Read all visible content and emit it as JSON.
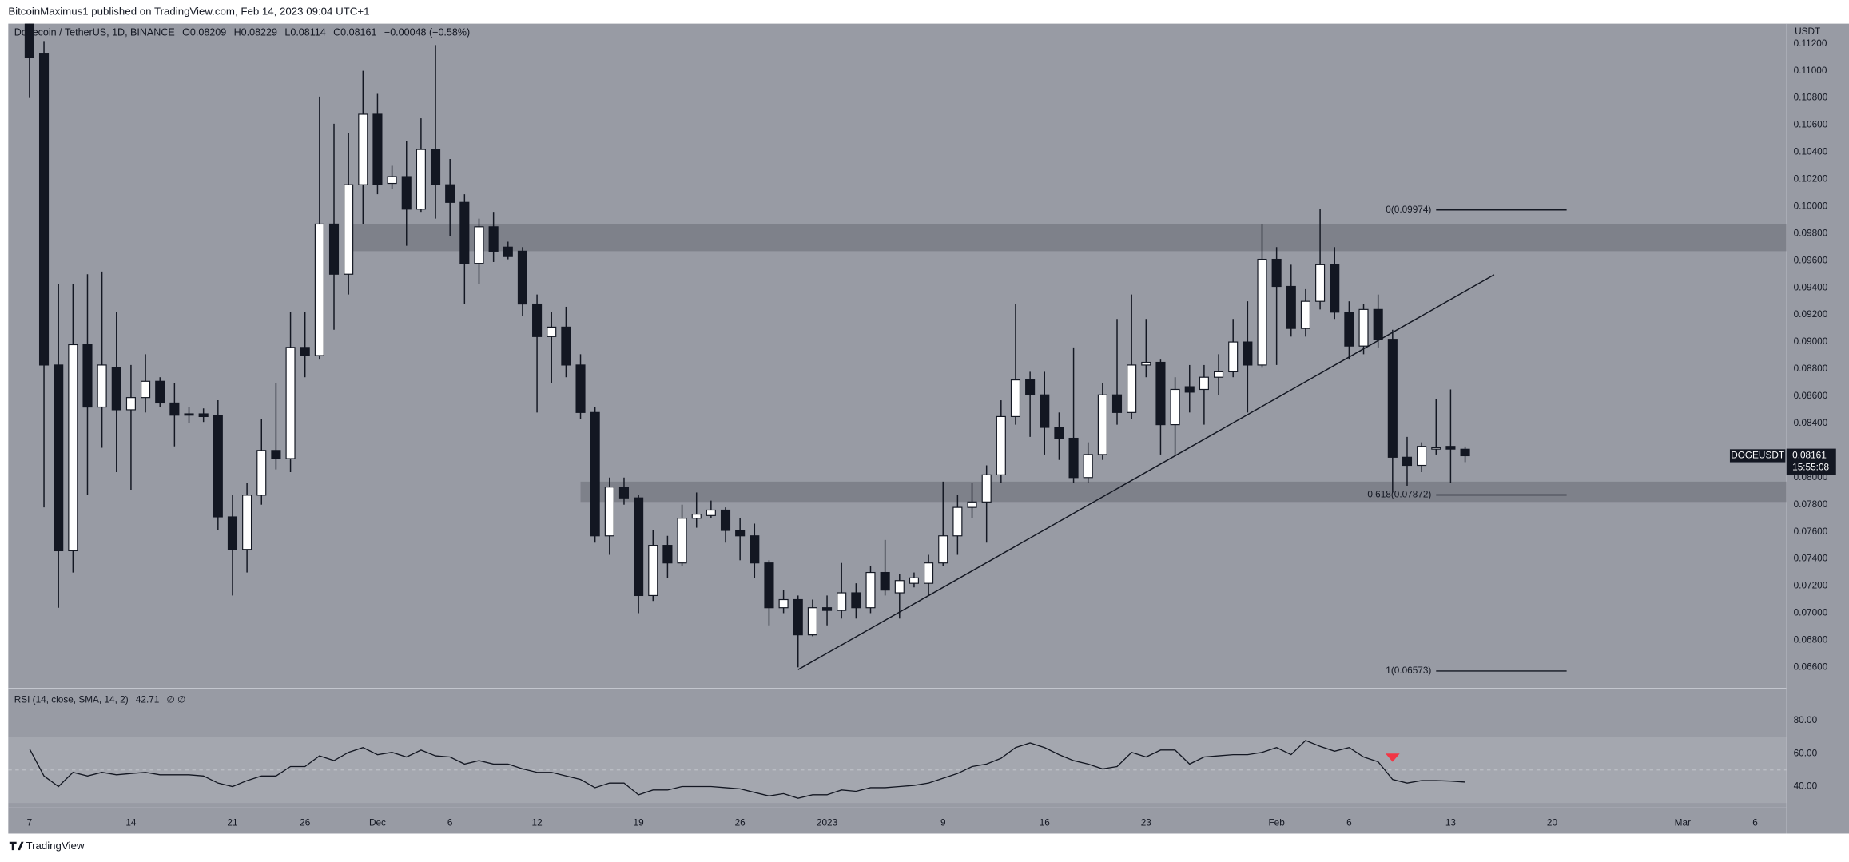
{
  "chart_data": {
    "type": "candlestick",
    "title": "BitcoinMaximus1 published on TradingView.com, Feb 14, 2023 09:04 UTC+1",
    "symbol": "Dogecoin / TetherUS, 1D, BINANCE",
    "ohlc_keys": [
      "O",
      "H",
      "L",
      "C"
    ],
    "change": "−0.00048 (−0.58%)",
    "unit": "USDT",
    "footer": "TradingView",
    "up_color": "#ffffff",
    "down_color": "#131722",
    "x": [
      "2022-11-07",
      "2022-11-08",
      "2022-11-09",
      "2022-11-10",
      "2022-11-11",
      "2022-11-12",
      "2022-11-13",
      "2022-11-14",
      "2022-11-15",
      "2022-11-16",
      "2022-11-17",
      "2022-11-18",
      "2022-11-19",
      "2022-11-20",
      "2022-11-21",
      "2022-11-22",
      "2022-11-23",
      "2022-11-24",
      "2022-11-25",
      "2022-11-26",
      "2022-11-27",
      "2022-11-28",
      "2022-11-29",
      "2022-11-30",
      "2022-12-01",
      "2022-12-02",
      "2022-12-03",
      "2022-12-04",
      "2022-12-05",
      "2022-12-06",
      "2022-12-07",
      "2022-12-08",
      "2022-12-09",
      "2022-12-10",
      "2022-12-11",
      "2022-12-12",
      "2022-12-13",
      "2022-12-14",
      "2022-12-15",
      "2022-12-16",
      "2022-12-17",
      "2022-12-18",
      "2022-12-19",
      "2022-12-20",
      "2022-12-21",
      "2022-12-22",
      "2022-12-23",
      "2022-12-24",
      "2022-12-25",
      "2022-12-26",
      "2022-12-27",
      "2022-12-28",
      "2022-12-29",
      "2022-12-30",
      "2022-12-31",
      "2023-01-01",
      "2023-01-02",
      "2023-01-03",
      "2023-01-04",
      "2023-01-05",
      "2023-01-06",
      "2023-01-07",
      "2023-01-08",
      "2023-01-09",
      "2023-01-10",
      "2023-01-11",
      "2023-01-12",
      "2023-01-13",
      "2023-01-14",
      "2023-01-15",
      "2023-01-16",
      "2023-01-17",
      "2023-01-18",
      "2023-01-19",
      "2023-01-20",
      "2023-01-21",
      "2023-01-22",
      "2023-01-23",
      "2023-01-24",
      "2023-01-25",
      "2023-01-26",
      "2023-01-27",
      "2023-01-28",
      "2023-01-29",
      "2023-01-30",
      "2023-01-31",
      "2023-02-01",
      "2023-02-02",
      "2023-02-03",
      "2023-02-04",
      "2023-02-05",
      "2023-02-06",
      "2023-02-07",
      "2023-02-08",
      "2023-02-09",
      "2023-02-10",
      "2023-02-11",
      "2023-02-12",
      "2023-02-13",
      "2023-02-14"
    ],
    "open": [
      0.1135,
      0.1113,
      0.0883,
      0.0746,
      0.0898,
      0.0852,
      0.0881,
      0.085,
      0.0859,
      0.0871,
      0.0855,
      0.0847,
      0.0847,
      0.0846,
      0.0771,
      0.0747,
      0.0787,
      0.082,
      0.0814,
      0.0896,
      0.089,
      0.0987,
      0.095,
      0.1016,
      0.1068,
      0.1017,
      0.1022,
      0.0998,
      0.1042,
      0.1016,
      0.1003,
      0.0958,
      0.0985,
      0.097,
      0.0967,
      0.0928,
      0.0904,
      0.0911,
      0.0883,
      0.0848,
      0.0757,
      0.0793,
      0.0785,
      0.0713,
      0.075,
      0.0737,
      0.077,
      0.0772,
      0.0776,
      0.0761,
      0.0757,
      0.0737,
      0.0704,
      0.071,
      0.0684,
      0.0704,
      0.0702,
      0.0715,
      0.0704,
      0.073,
      0.0715,
      0.0722,
      0.0722,
      0.0737,
      0.0757,
      0.0778,
      0.0782,
      0.0802,
      0.0845,
      0.0872,
      0.0861,
      0.0837,
      0.0829,
      0.08,
      0.0817,
      0.0861,
      0.0848,
      0.0883,
      0.0885,
      0.0839,
      0.0867,
      0.0865,
      0.0874,
      0.0878,
      0.09,
      0.0883,
      0.0961,
      0.0941,
      0.091,
      0.093,
      0.0957,
      0.0922,
      0.0897,
      0.0924,
      0.0902,
      0.0815,
      0.0809,
      0.0821,
      0.0823,
      0.08209
    ],
    "high": [
      0.115,
      0.1122,
      0.0943,
      0.0943,
      0.095,
      0.0952,
      0.0922,
      0.0883,
      0.0891,
      0.0874,
      0.087,
      0.0852,
      0.0851,
      0.0857,
      0.0787,
      0.0796,
      0.0843,
      0.087,
      0.0922,
      0.0922,
      0.1081,
      0.1061,
      0.1054,
      0.11,
      0.1083,
      0.103,
      0.1048,
      0.1065,
      0.1119,
      0.1035,
      0.1009,
      0.0991,
      0.0996,
      0.0974,
      0.097,
      0.0935,
      0.0922,
      0.0926,
      0.0891,
      0.0852,
      0.08,
      0.08,
      0.0787,
      0.0761,
      0.0757,
      0.078,
      0.0789,
      0.0783,
      0.0778,
      0.077,
      0.0766,
      0.0739,
      0.0717,
      0.0713,
      0.071,
      0.0713,
      0.0737,
      0.0722,
      0.0735,
      0.0754,
      0.0729,
      0.073,
      0.0743,
      0.0797,
      0.0787,
      0.0796,
      0.0809,
      0.0857,
      0.0928,
      0.0878,
      0.0878,
      0.0848,
      0.0896,
      0.0826,
      0.087,
      0.0917,
      0.0935,
      0.0917,
      0.0887,
      0.0874,
      0.0883,
      0.0883,
      0.0891,
      0.0917,
      0.093,
      0.0987,
      0.097,
      0.0957,
      0.0939,
      0.0998,
      0.097,
      0.093,
      0.0928,
      0.0935,
      0.0909,
      0.083,
      0.0826,
      0.0858,
      0.0865,
      0.08229
    ],
    "low": [
      0.108,
      0.0778,
      0.0704,
      0.073,
      0.0787,
      0.0822,
      0.0804,
      0.0791,
      0.0848,
      0.0852,
      0.0823,
      0.084,
      0.0841,
      0.0761,
      0.0713,
      0.073,
      0.078,
      0.0806,
      0.0804,
      0.0874,
      0.0887,
      0.0909,
      0.0935,
      0.0987,
      0.1009,
      0.1013,
      0.0971,
      0.0996,
      0.0991,
      0.0978,
      0.0928,
      0.0943,
      0.0959,
      0.0961,
      0.0919,
      0.0848,
      0.087,
      0.0874,
      0.0843,
      0.0752,
      0.0743,
      0.078,
      0.07,
      0.0709,
      0.0726,
      0.0735,
      0.0763,
      0.077,
      0.0752,
      0.0739,
      0.0726,
      0.0691,
      0.07,
      0.066,
      0.0683,
      0.0691,
      0.0696,
      0.0696,
      0.07,
      0.0713,
      0.0696,
      0.0719,
      0.0713,
      0.0735,
      0.0743,
      0.077,
      0.0752,
      0.0796,
      0.0839,
      0.083,
      0.0817,
      0.0813,
      0.0796,
      0.0796,
      0.0813,
      0.0839,
      0.0843,
      0.0874,
      0.0817,
      0.0817,
      0.0848,
      0.0839,
      0.0861,
      0.0874,
      0.0848,
      0.0881,
      0.0883,
      0.0904,
      0.0904,
      0.0924,
      0.0917,
      0.0887,
      0.0891,
      0.0896,
      0.0789,
      0.0794,
      0.0804,
      0.0817,
      0.0796,
      0.08114
    ],
    "close": [
      0.111,
      0.0883,
      0.0746,
      0.0898,
      0.0852,
      0.0883,
      0.085,
      0.0859,
      0.0871,
      0.0855,
      0.0846,
      0.0846,
      0.0845,
      0.0771,
      0.0747,
      0.0787,
      0.082,
      0.0814,
      0.0896,
      0.089,
      0.0987,
      0.095,
      0.1016,
      0.1068,
      0.1016,
      0.1022,
      0.0998,
      0.1042,
      0.1016,
      0.1003,
      0.0958,
      0.0985,
      0.0967,
      0.0963,
      0.0928,
      0.0904,
      0.0911,
      0.0883,
      0.0848,
      0.0757,
      0.0793,
      0.0785,
      0.0713,
      0.075,
      0.0737,
      0.077,
      0.0773,
      0.0776,
      0.0761,
      0.0757,
      0.0737,
      0.0704,
      0.071,
      0.0684,
      0.0704,
      0.0702,
      0.0715,
      0.0704,
      0.073,
      0.0717,
      0.0724,
      0.0726,
      0.0737,
      0.0757,
      0.0778,
      0.0782,
      0.0802,
      0.0845,
      0.0872,
      0.0861,
      0.0837,
      0.0829,
      0.08,
      0.0817,
      0.0861,
      0.0848,
      0.0883,
      0.0885,
      0.0839,
      0.0865,
      0.0863,
      0.0874,
      0.0878,
      0.09,
      0.0883,
      0.0961,
      0.0941,
      0.091,
      0.093,
      0.0957,
      0.0922,
      0.0897,
      0.0924,
      0.0902,
      0.0815,
      0.0809,
      0.0823,
      0.0822,
      0.0821,
      0.08161
    ],
    "xlim": [
      "2022-11-06",
      "2023-03-08"
    ],
    "xticks": [
      {
        "value": "2022-11-07",
        "label": "7"
      },
      {
        "value": "2022-11-14",
        "label": "14"
      },
      {
        "value": "2022-11-21",
        "label": "21"
      },
      {
        "value": "2022-11-26",
        "label": "26"
      },
      {
        "value": "2022-12-01",
        "label": "Dec"
      },
      {
        "value": "2022-12-06",
        "label": "6"
      },
      {
        "value": "2022-12-12",
        "label": "12"
      },
      {
        "value": "2022-12-19",
        "label": "19"
      },
      {
        "value": "2022-12-26",
        "label": "26"
      },
      {
        "value": "2023-01-01",
        "label": "2023"
      },
      {
        "value": "2023-01-09",
        "label": "9"
      },
      {
        "value": "2023-01-16",
        "label": "16"
      },
      {
        "value": "2023-01-23",
        "label": "23"
      },
      {
        "value": "2023-02-01",
        "label": "Feb"
      },
      {
        "value": "2023-02-06",
        "label": "6"
      },
      {
        "value": "2023-02-13",
        "label": "13"
      },
      {
        "value": "2023-02-20",
        "label": "20"
      },
      {
        "value": "2023-03-01",
        "label": "Mar"
      },
      {
        "value": "2023-03-06",
        "label": "6"
      }
    ],
    "ylim": [
      0.06452,
      0.11348
    ],
    "yticks": [
      {
        "value": 0.112,
        "label": "0.11200"
      },
      {
        "value": 0.11,
        "label": "0.11000"
      },
      {
        "value": 0.108,
        "label": "0.10800"
      },
      {
        "value": 0.106,
        "label": "0.10600"
      },
      {
        "value": 0.104,
        "label": "0.10400"
      },
      {
        "value": 0.102,
        "label": "0.10200"
      },
      {
        "value": 0.1,
        "label": "0.10000"
      },
      {
        "value": 0.098,
        "label": "0.09800"
      },
      {
        "value": 0.096,
        "label": "0.09600"
      },
      {
        "value": 0.094,
        "label": "0.09400"
      },
      {
        "value": 0.092,
        "label": "0.09200"
      },
      {
        "value": 0.09,
        "label": "0.09000"
      },
      {
        "value": 0.088,
        "label": "0.08800"
      },
      {
        "value": 0.086,
        "label": "0.08600"
      },
      {
        "value": 0.084,
        "label": "0.08400"
      },
      {
        "value": 0.08,
        "label": "0.08000"
      },
      {
        "value": 0.078,
        "label": "0.07800"
      },
      {
        "value": 0.076,
        "label": "0.07600"
      },
      {
        "value": 0.074,
        "label": "0.07400"
      },
      {
        "value": 0.072,
        "label": "0.07200"
      },
      {
        "value": 0.07,
        "label": "0.07000"
      },
      {
        "value": 0.068,
        "label": "0.06800"
      },
      {
        "value": 0.066,
        "label": "0.06600"
      }
    ],
    "zones": [
      {
        "start": "2022-11-29",
        "low": 0.0967,
        "high": 0.0987
      },
      {
        "start": "2022-12-15",
        "low": 0.0782,
        "high": 0.0797
      }
    ],
    "fib_levels": [
      {
        "label": "0(0.09974)",
        "value": 0.09974
      },
      {
        "label": "0.618(0.07872)",
        "value": 0.07872
      },
      {
        "label": "1(0.06573)",
        "value": 0.06573
      }
    ],
    "fib_range": [
      "2023-02-12",
      "2023-02-21"
    ],
    "trendline": {
      "x": [
        "2022-12-30",
        "2023-02-16"
      ],
      "values": [
        0.06583,
        0.09496
      ]
    },
    "price_tag": {
      "symbol": "DOGEUSDT",
      "countdown": "15:55:08"
    },
    "rsi": {
      "label": "RSI (14, close, SMA, 14, 2)",
      "extra": "∅ ∅",
      "values": [
        62.9,
        46.4,
        40.0,
        48.6,
        46.4,
        48.6,
        47.1,
        47.9,
        48.6,
        47.1,
        47.1,
        47.1,
        46.4,
        42.1,
        40.0,
        43.6,
        46.4,
        46.4,
        52.1,
        52.1,
        58.6,
        55.7,
        60.7,
        63.6,
        59.3,
        60.7,
        57.9,
        62.1,
        58.6,
        57.9,
        53.6,
        55.7,
        53.6,
        53.6,
        50.7,
        48.6,
        48.6,
        46.4,
        44.3,
        39.3,
        42.1,
        42.1,
        35.0,
        37.9,
        37.9,
        40.0,
        40.0,
        40.0,
        39.3,
        38.6,
        36.4,
        34.3,
        35.7,
        32.9,
        35.0,
        35.0,
        37.9,
        37.1,
        39.3,
        39.3,
        40.0,
        40.7,
        42.1,
        45.0,
        47.9,
        52.1,
        53.6,
        57.1,
        63.6,
        66.4,
        63.6,
        59.3,
        55.7,
        53.6,
        50.7,
        52.1,
        60.7,
        57.9,
        62.1,
        62.1,
        53.6,
        57.9,
        58.6,
        59.3,
        59.3,
        60.7,
        63.6,
        59.3,
        67.9,
        64.3,
        61.4,
        63.6,
        57.9,
        55.0,
        44.3,
        42.1,
        43.6,
        43.6,
        43.3,
        42.71
      ],
      "ylim": [
        28.6,
        98.6
      ],
      "yticks": [
        {
          "value": 80,
          "label": "80.00"
        },
        {
          "value": 60,
          "label": "60.00"
        },
        {
          "value": 40,
          "label": "40.00"
        }
      ],
      "band": [
        30,
        70
      ],
      "midline": 50,
      "signal": {
        "x": "2023-02-09",
        "value": 57.1,
        "color": "#f23645"
      }
    }
  }
}
